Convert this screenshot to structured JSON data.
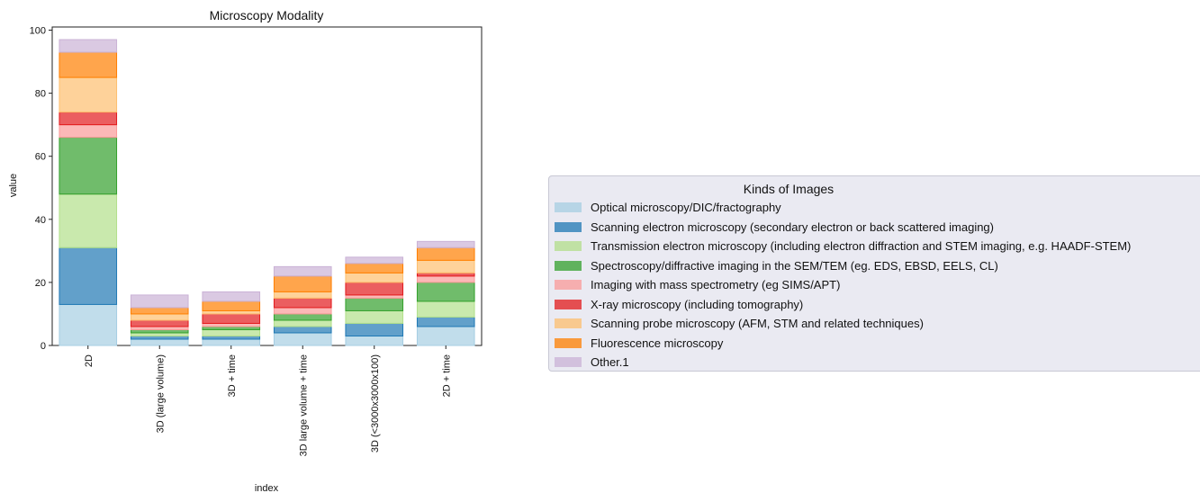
{
  "chart_data": {
    "type": "bar",
    "stacked": true,
    "title": "Microscopy Modality",
    "xlabel": "index",
    "ylabel": "value",
    "ylim": [
      0,
      101
    ],
    "yticks": [
      "0",
      "20",
      "40",
      "60",
      "80",
      "100"
    ],
    "categories": [
      "2D",
      "3D (large volume)",
      "3D + time",
      "3D large volume + time",
      "3D (<3000x3000x100)",
      "2D + time"
    ],
    "legend_title": "Kinds of Images",
    "legend_position": "right",
    "series": [
      {
        "name": "Optical microscopy/DIC/fractography",
        "values": [
          13,
          2,
          2,
          4,
          3,
          6
        ],
        "fill": "#a6cee3",
        "edge": "#a6cee3"
      },
      {
        "name": "Scanning electron microscopy (secondary electron or back scattered imaging)",
        "values": [
          18,
          1,
          1,
          2,
          4,
          3
        ],
        "fill": "#1f78b4",
        "edge": "#1f78b4"
      },
      {
        "name": "Transmission electron microscopy (including electron diffraction and STEM imaging, e.g. HAADF-STEM)",
        "values": [
          17,
          1,
          2,
          2,
          4,
          5
        ],
        "fill": "#b2df8a",
        "edge": "#b2df8a"
      },
      {
        "name": "Spectroscopy/diffractive imaging in the SEM/TEM (eg. EDS, EBSD, EELS, CL)",
        "values": [
          18,
          1,
          1,
          2,
          4,
          6
        ],
        "fill": "#33a02c",
        "edge": "#33a02c"
      },
      {
        "name": "Imaging with mass spectrometry (eg SIMS/APT)",
        "values": [
          4,
          1,
          1,
          2,
          1,
          2
        ],
        "fill": "#fb9a99",
        "edge": "#fb9a99"
      },
      {
        "name": "X-ray microscopy (including tomography)",
        "values": [
          4,
          2,
          3,
          3,
          4,
          1
        ],
        "fill": "#e31a1c",
        "edge": "#e31a1c"
      },
      {
        "name": "Scanning probe microscopy (AFM, STM and related techniques)",
        "values": [
          11,
          2,
          1,
          2,
          3,
          4
        ],
        "fill": "#fdbf6f",
        "edge": "#fdbf6f"
      },
      {
        "name": "Fluorescence microscopy",
        "values": [
          8,
          2,
          3,
          5,
          3,
          4
        ],
        "fill": "#ff7f00",
        "edge": "#ff7f00"
      },
      {
        "name": "Other.1",
        "values": [
          4,
          4,
          3,
          3,
          2,
          2
        ],
        "fill": "#cab2d6",
        "edge": "#cab2d6"
      }
    ]
  }
}
